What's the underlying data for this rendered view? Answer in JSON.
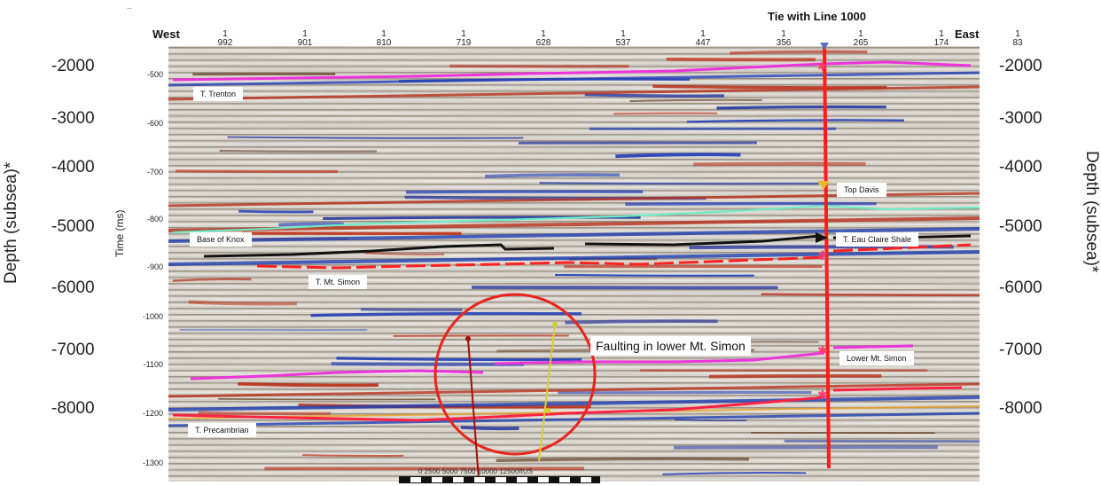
{
  "header": {
    "west": "West",
    "east": "East",
    "tie": "Tie with Line 1000",
    "corner_mark": "‥"
  },
  "traces": {
    "prefix": "1",
    "values": [
      "992",
      "901",
      "810",
      "719",
      "628",
      "537",
      "447",
      "356",
      "265",
      "174",
      "83"
    ]
  },
  "time_axis": {
    "label": "Time (ms)",
    "ticks": [
      "-500",
      "-600",
      "-700",
      "-800",
      "-900",
      "-1000",
      "-1100",
      "-1200",
      "-1300"
    ]
  },
  "depth_axis": {
    "left_title": "Depth (subsea)*",
    "right_title": "Depth (subsea)*",
    "ticks": [
      "-2000",
      "-3000",
      "-4000",
      "-5000",
      "-6000",
      "-7000",
      "-8000"
    ],
    "right_ticks": [
      "-2000",
      "-3000",
      "-4000",
      "-5000",
      "-6000",
      "-7000",
      "-8000"
    ]
  },
  "horizons": {
    "trenton": "T. Trenton",
    "base_knox": "Base of Knox",
    "mt_simon": "T. Mt. Simon",
    "precambrian": "T. Precambrian",
    "top_davis": "Top Davis",
    "eau_claire": "T. Eau Claire Shale",
    "lower_mt_simon": "Lower Mt. Simon"
  },
  "annotation": {
    "faulting": "Faulting in lower Mt. Simon"
  },
  "scale_bar": {
    "text": "0 2500 5000 7500 10000 12500ftUS"
  },
  "colors": {
    "well": "#ff1c1c",
    "trenton": "#ee33dd",
    "knox": "#66f0c8",
    "eau_claire": "#111111",
    "mt_simon": "#ff2222",
    "lower_mt_simon": "#ee33dd",
    "precambrian": "#ff2244",
    "circle": "#e8241c",
    "fault_1": "#a01010",
    "fault_2": "#d8d030"
  }
}
